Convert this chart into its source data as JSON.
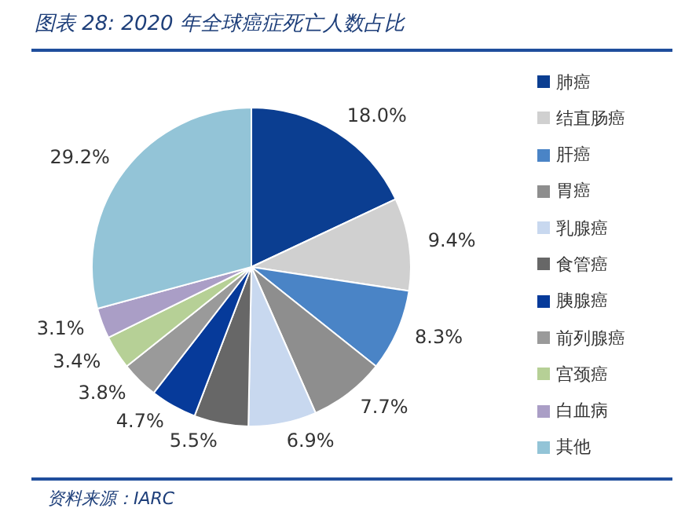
{
  "chart_data": {
    "type": "pie",
    "title": "图表 28:  2020 年全球癌症死亡人数占比",
    "categories": [
      "肺癌",
      "结直肠癌",
      "肝癌",
      "胃癌",
      "乳腺癌",
      "食管癌",
      "胰腺癌",
      "前列腺癌",
      "宫颈癌",
      "白血病",
      "其他"
    ],
    "values": [
      18.0,
      9.4,
      8.3,
      7.7,
      6.9,
      5.5,
      4.7,
      3.8,
      3.4,
      3.1,
      29.2
    ],
    "value_labels": [
      "18.0%",
      "9.4%",
      "8.3%",
      "7.7%",
      "6.9%",
      "5.5%",
      "4.7%",
      "3.8%",
      "3.4%",
      "3.1%",
      "29.2%"
    ],
    "colors": [
      "#0b3e91",
      "#d0d0d0",
      "#4a84c6",
      "#8e8e8e",
      "#c8d8ef",
      "#676767",
      "#063a9a",
      "#9a9a9a",
      "#b6d096",
      "#aa9ec6",
      "#93c4d7"
    ],
    "legend": "right",
    "annotations": [
      "资料来源：IARC"
    ]
  }
}
